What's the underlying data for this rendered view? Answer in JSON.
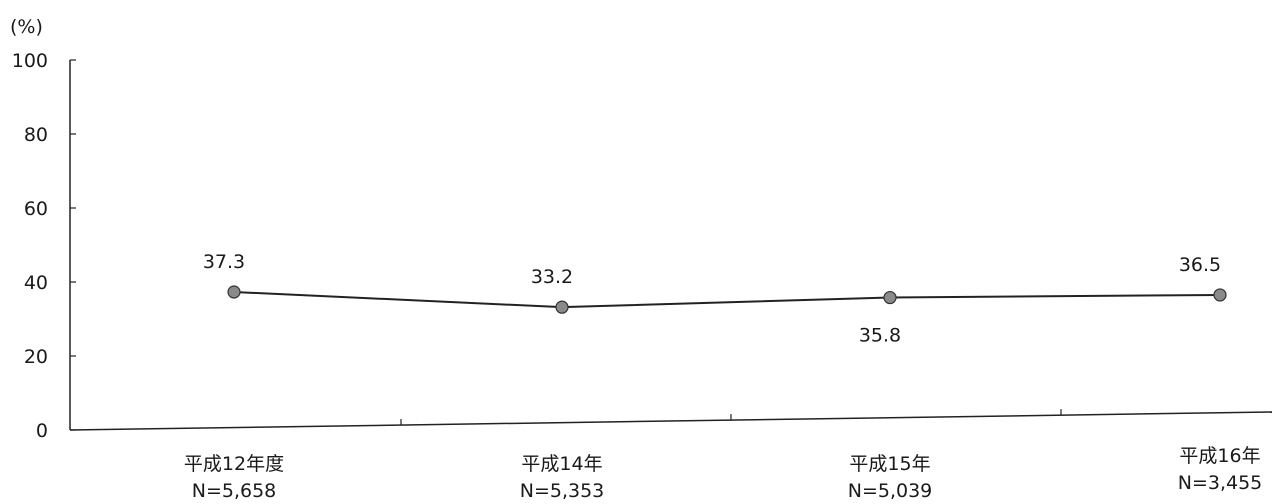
{
  "chart_data": {
    "type": "line",
    "unit_label": "(%)",
    "ylim": [
      0,
      100
    ],
    "yticks": [
      0,
      20,
      40,
      60,
      80,
      100
    ],
    "grid": false,
    "categories": [
      {
        "label": "平成12年度",
        "n": "N=5,658"
      },
      {
        "label": "平成14年",
        "n": "N=5,353"
      },
      {
        "label": "平成15年",
        "n": "N=5,039"
      },
      {
        "label": "平成16年",
        "n": "N=3,455"
      }
    ],
    "series": [
      {
        "values": [
          37.3,
          33.2,
          35.8,
          36.5
        ],
        "value_labels": [
          "37.3",
          "33.2",
          "35.8",
          "36.5"
        ],
        "color": "#222222",
        "marker_color": "#8a8a8a"
      }
    ]
  }
}
